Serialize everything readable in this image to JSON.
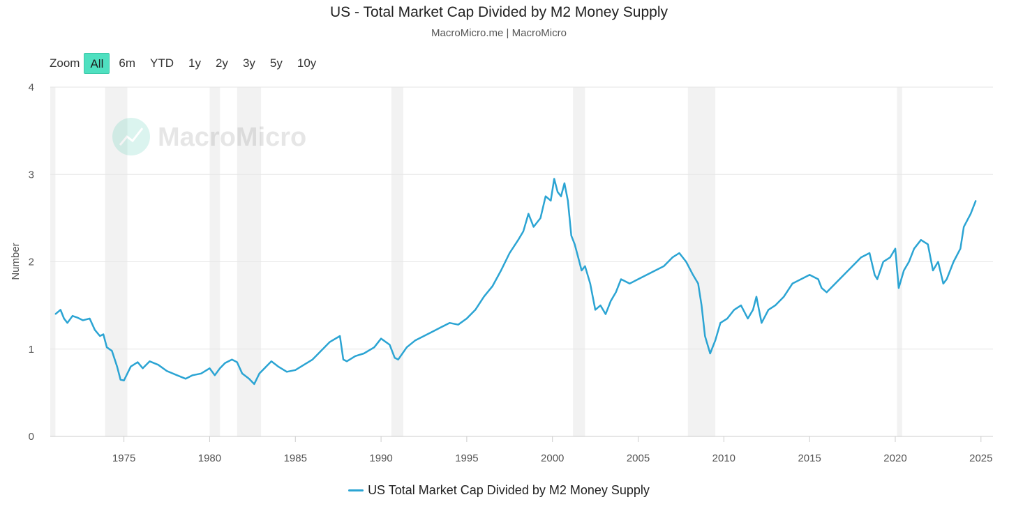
{
  "header": {
    "title": "US - Total Market Cap Divided by M2 Money Supply",
    "subtitle": "MacroMicro.me | MacroMicro"
  },
  "zoom": {
    "label": "Zoom",
    "buttons": [
      "All",
      "6m",
      "YTD",
      "1y",
      "2y",
      "3y",
      "5y",
      "10y"
    ],
    "active": "All"
  },
  "watermark": {
    "text": "MacroMicro"
  },
  "colors": {
    "series": "#2ba4d3",
    "recession": "#f2f2f2",
    "grid": "#e6e6e6",
    "accent": "#4fe0c0"
  },
  "chart_data": {
    "type": "line",
    "title": "US - Total Market Cap Divided by M2 Money Supply",
    "ylabel": "Number",
    "xlabel": "",
    "xlim": [
      1970.7,
      2025.7
    ],
    "ylim": [
      0,
      4
    ],
    "yticks": [
      "0",
      "1",
      "2",
      "3",
      "4"
    ],
    "xticks": [
      "1975",
      "1980",
      "1985",
      "1990",
      "1995",
      "2000",
      "2005",
      "2010",
      "2015",
      "2020",
      "2025"
    ],
    "grid": true,
    "legend": "bottom-center",
    "recessions": [
      [
        1970.7,
        1971.0
      ],
      [
        1973.9,
        1975.2
      ],
      [
        1980.0,
        1980.6
      ],
      [
        1981.6,
        1983.0
      ],
      [
        1990.6,
        1991.3
      ],
      [
        2001.2,
        2001.9
      ],
      [
        2007.9,
        2009.5
      ],
      [
        2020.1,
        2020.4
      ]
    ],
    "series": [
      {
        "name": "US Total Market Cap Divided by M2 Money Supply",
        "x": [
          1971.0,
          1971.3,
          1971.5,
          1971.7,
          1972.0,
          1972.3,
          1972.6,
          1973.0,
          1973.3,
          1973.6,
          1973.8,
          1974.0,
          1974.3,
          1974.6,
          1974.8,
          1975.0,
          1975.4,
          1975.8,
          1976.1,
          1976.5,
          1977.0,
          1977.5,
          1978.1,
          1978.6,
          1979.0,
          1979.5,
          1980.0,
          1980.3,
          1980.6,
          1980.9,
          1981.3,
          1981.6,
          1981.9,
          1982.3,
          1982.6,
          1982.9,
          1983.3,
          1983.6,
          1984.0,
          1984.5,
          1985.0,
          1985.5,
          1986.0,
          1986.5,
          1987.0,
          1987.6,
          1987.8,
          1988.0,
          1988.5,
          1989.0,
          1989.6,
          1990.0,
          1990.5,
          1990.8,
          1991.0,
          1991.5,
          1992.0,
          1992.5,
          1993.0,
          1993.5,
          1994.0,
          1994.5,
          1995.0,
          1995.5,
          1996.0,
          1996.5,
          1997.0,
          1997.5,
          1998.0,
          1998.3,
          1998.6,
          1998.9,
          1999.3,
          1999.6,
          1999.9,
          2000.1,
          2000.3,
          2000.5,
          2000.7,
          2000.9,
          2001.1,
          2001.3,
          2001.5,
          2001.7,
          2001.9,
          2002.2,
          2002.5,
          2002.8,
          2003.1,
          2003.4,
          2003.7,
          2004.0,
          2004.5,
          2005.0,
          2005.5,
          2006.0,
          2006.5,
          2007.0,
          2007.4,
          2007.8,
          2008.2,
          2008.5,
          2008.7,
          2008.9,
          2009.2,
          2009.5,
          2009.8,
          2010.2,
          2010.6,
          2011.0,
          2011.4,
          2011.7,
          2011.9,
          2012.2,
          2012.6,
          2013.0,
          2013.5,
          2014.0,
          2014.5,
          2015.0,
          2015.5,
          2015.7,
          2016.0,
          2016.5,
          2017.0,
          2017.5,
          2018.0,
          2018.5,
          2018.8,
          2018.95,
          2019.3,
          2019.7,
          2020.0,
          2020.2,
          2020.5,
          2020.8,
          2021.1,
          2021.5,
          2021.9,
          2022.2,
          2022.5,
          2022.8,
          2023.0,
          2023.4,
          2023.8,
          2024.0,
          2024.4,
          2024.7
        ],
        "values": [
          1.4,
          1.45,
          1.35,
          1.3,
          1.38,
          1.36,
          1.33,
          1.35,
          1.22,
          1.15,
          1.17,
          1.02,
          0.98,
          0.8,
          0.65,
          0.64,
          0.8,
          0.85,
          0.78,
          0.86,
          0.82,
          0.75,
          0.7,
          0.66,
          0.7,
          0.72,
          0.78,
          0.7,
          0.78,
          0.84,
          0.88,
          0.85,
          0.72,
          0.66,
          0.6,
          0.72,
          0.8,
          0.86,
          0.8,
          0.74,
          0.76,
          0.82,
          0.88,
          0.98,
          1.08,
          1.15,
          0.88,
          0.86,
          0.92,
          0.95,
          1.02,
          1.12,
          1.05,
          0.9,
          0.88,
          1.02,
          1.1,
          1.15,
          1.2,
          1.25,
          1.3,
          1.28,
          1.35,
          1.45,
          1.6,
          1.72,
          1.9,
          2.1,
          2.25,
          2.35,
          2.55,
          2.4,
          2.5,
          2.75,
          2.7,
          2.95,
          2.8,
          2.75,
          2.9,
          2.7,
          2.3,
          2.2,
          2.05,
          1.9,
          1.95,
          1.75,
          1.45,
          1.5,
          1.4,
          1.55,
          1.65,
          1.8,
          1.75,
          1.8,
          1.85,
          1.9,
          1.95,
          2.05,
          2.1,
          2.0,
          1.85,
          1.75,
          1.5,
          1.15,
          0.95,
          1.1,
          1.3,
          1.35,
          1.45,
          1.5,
          1.35,
          1.45,
          1.6,
          1.3,
          1.45,
          1.5,
          1.6,
          1.75,
          1.8,
          1.85,
          1.8,
          1.7,
          1.65,
          1.75,
          1.85,
          1.95,
          2.05,
          2.1,
          1.85,
          1.8,
          2.0,
          2.05,
          2.15,
          1.7,
          1.9,
          2.0,
          2.15,
          2.25,
          2.2,
          1.9,
          2.0,
          1.75,
          1.8,
          2.0,
          2.15,
          2.4,
          2.55,
          2.7
        ]
      }
    ]
  }
}
